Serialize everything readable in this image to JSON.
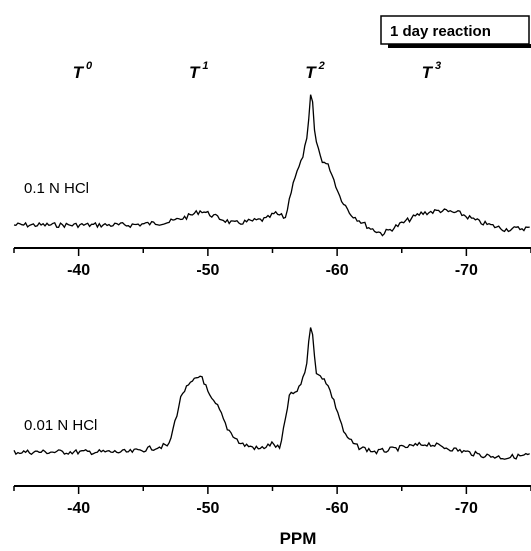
{
  "chart_data": {
    "type": "line",
    "badge": "1 day reaction",
    "xlabel": "PPM",
    "xlim": [
      -35,
      -75
    ],
    "x_reversed": true,
    "xticks": [
      -40,
      -50,
      -60,
      -70
    ],
    "xtick_labels": [
      "-40",
      "-50",
      "-60",
      "-70"
    ],
    "peak_labels": [
      {
        "base": "T",
        "sup": "0",
        "x": -40
      },
      {
        "base": "T",
        "sup": "1",
        "x": -49
      },
      {
        "base": "T",
        "sup": "2",
        "x": -58
      },
      {
        "base": "T",
        "sup": "3",
        "x": -67
      }
    ],
    "panels": [
      {
        "label": "0.1 N HCl",
        "series": [
          {
            "x": [
              -35,
              -40,
              -44,
              -47,
              -48.5,
              -49.5,
              -50.5,
              -52,
              -54.5,
              -55.2,
              -56,
              -56.6,
              -57.2,
              -57.7,
              -58,
              -58.3,
              -58.8,
              -59.4,
              -60.2,
              -61,
              -62.5,
              -63.5,
              -65,
              -66.5,
              -68,
              -69.5,
              -71,
              -73,
              -75
            ],
            "y": [
              0.0,
              0.0,
              0.0,
              0.02,
              0.06,
              0.1,
              0.06,
              0.01,
              0.04,
              0.08,
              0.05,
              0.3,
              0.43,
              0.6,
              0.95,
              0.6,
              0.45,
              0.4,
              0.2,
              0.08,
              -0.02,
              -0.06,
              0.01,
              0.08,
              0.1,
              0.08,
              0.02,
              -0.03,
              -0.02
            ]
          }
        ]
      },
      {
        "label": "0.01 N HCl",
        "series": [
          {
            "x": [
              -35,
              -40,
              -44,
              -47,
              -48,
              -48.8,
              -49.5,
              -50.2,
              -50.8,
              -51.5,
              -52.5,
              -54,
              -55,
              -55.6,
              -56.3,
              -57,
              -57.6,
              -58,
              -58.4,
              -59,
              -59.4,
              -60,
              -60.6,
              -61.5,
              -63,
              -65,
              -67,
              -69,
              -71,
              -73,
              -75
            ],
            "y": [
              0.0,
              0.0,
              0.0,
              0.05,
              0.42,
              0.5,
              0.55,
              0.38,
              0.32,
              0.17,
              0.06,
              0.02,
              0.06,
              0.02,
              0.4,
              0.44,
              0.6,
              0.95,
              0.55,
              0.53,
              0.45,
              0.3,
              0.12,
              0.04,
              0.0,
              0.03,
              0.06,
              0.02,
              -0.02,
              -0.04,
              -0.02
            ]
          }
        ]
      }
    ]
  }
}
